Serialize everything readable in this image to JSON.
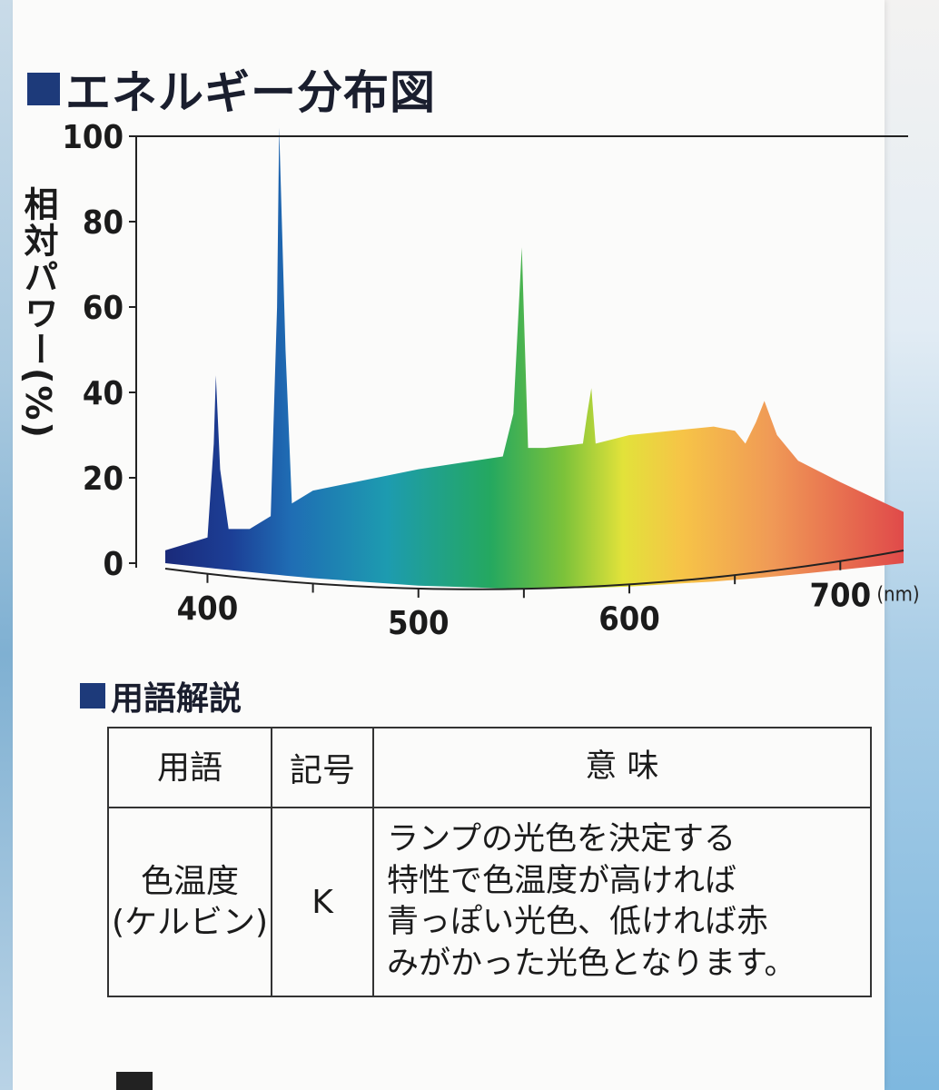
{
  "headings": {
    "energy": "エネルギー分布図",
    "terms": "用語解説"
  },
  "chart_data": {
    "type": "area",
    "title": "エネルギー分布図",
    "ylabel": "相対パワー(%)",
    "xlabel": "",
    "x_unit": "(nm)",
    "xlim": [
      380,
      730
    ],
    "ylim": [
      0,
      100
    ],
    "y_ticks": [
      0,
      20,
      40,
      60,
      80,
      100
    ],
    "x_ticks": [
      400,
      500,
      600,
      700
    ],
    "x": [
      380,
      400,
      403,
      404,
      406,
      410,
      420,
      430,
      433,
      434,
      437,
      440,
      450,
      500,
      540,
      545,
      549,
      552,
      560,
      578,
      580,
      582,
      584,
      600,
      640,
      650,
      655,
      660,
      664,
      670,
      680,
      700,
      730
    ],
    "y": [
      3,
      6,
      28,
      44,
      22,
      8,
      8,
      11,
      60,
      102,
      50,
      14,
      17,
      22,
      25,
      35,
      74,
      27,
      27,
      28,
      35,
      41,
      28,
      30,
      32,
      31,
      28,
      33,
      38,
      30,
      24,
      19,
      12
    ],
    "grid": false
  },
  "terms": {
    "headers": [
      "用語",
      "記号",
      "意 味"
    ],
    "row": {
      "term_line1": "色温度",
      "term_line2": "(ケルビン)",
      "symbol": "K",
      "meaning_lines": [
        "ランプの光色を決定する",
        "特性で色温度が高ければ",
        "青っぽい光色、低ければ赤",
        "みがかった光色となります。"
      ]
    }
  }
}
